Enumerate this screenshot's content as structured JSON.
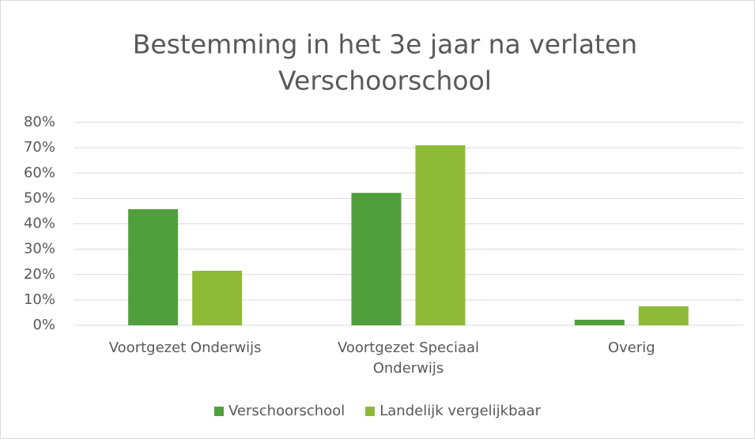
{
  "chart_data": {
    "type": "bar",
    "title": [
      "Bestemming in het 3e jaar na verlaten",
      "Verschoorschool"
    ],
    "categories": [
      "Voortgezet Onderwijs",
      "Voortgezet Speciaal Onderwijs",
      "Overig"
    ],
    "series": [
      {
        "name": "Verschoorschool",
        "color": "#519e3c",
        "values": [
          45.8,
          52.2,
          2.2
        ]
      },
      {
        "name": "Landelijk vergelijkbaar",
        "color": "#8fba38",
        "values": [
          21.5,
          71,
          7.5
        ]
      }
    ],
    "ylim": [
      0,
      80
    ],
    "yticks": [
      {
        "value": 0,
        "label": "0%"
      },
      {
        "value": 10,
        "label": "10%"
      },
      {
        "value": 20,
        "label": "20%"
      },
      {
        "value": 30,
        "label": "30%"
      },
      {
        "value": 40,
        "label": "40%"
      },
      {
        "value": 50,
        "label": "50%"
      },
      {
        "value": 60,
        "label": "60%"
      },
      {
        "value": 70,
        "label": "70%"
      },
      {
        "value": 80,
        "label": "80%"
      }
    ],
    "grid": true,
    "legend": "bottom"
  }
}
